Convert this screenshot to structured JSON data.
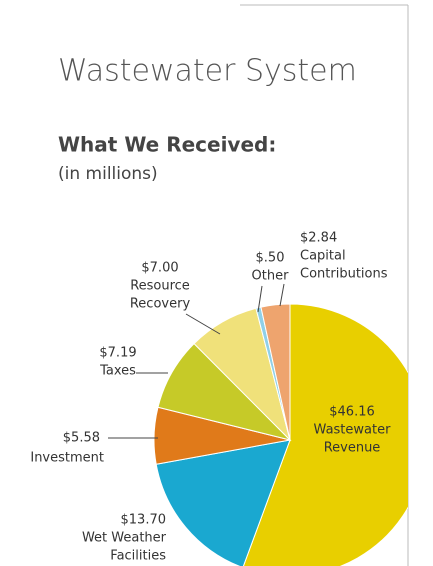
{
  "chart_data": {
    "type": "pie",
    "title": "Wastewater System",
    "subtitle": "What We Received:",
    "unit_note": "(in millions)",
    "labels": [
      [
        "Wastewater",
        "Revenue"
      ],
      [
        "Wet Weather",
        "Facilities"
      ],
      [
        "Investment"
      ],
      [
        "Taxes"
      ],
      [
        "Resource",
        "Recovery"
      ],
      [
        "Other"
      ],
      [
        "Capital",
        "Contributions"
      ]
    ],
    "values": [
      46.16,
      13.7,
      5.58,
      7.19,
      7.0,
      0.5,
      2.84
    ],
    "value_labels": [
      "$46.16",
      "$13.70",
      "$5.58",
      "$7.19",
      "$7.00",
      "$.50",
      "$2.84"
    ],
    "colors": [
      "#e8cf00",
      "#1aa8d0",
      "#e07a1a",
      "#c6ca28",
      "#f0e17a",
      "#8fd0e8",
      "#eea46e"
    ]
  }
}
